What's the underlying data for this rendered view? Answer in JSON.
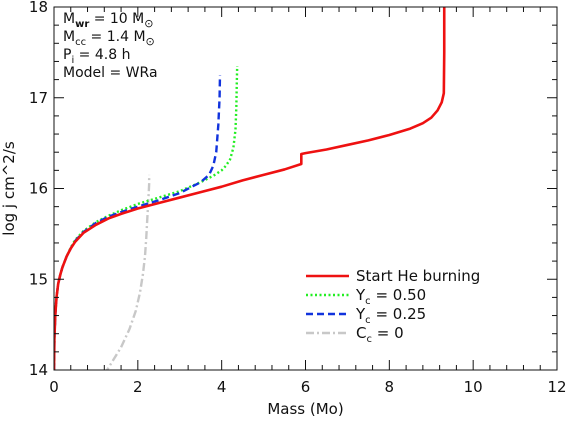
{
  "chart_data": {
    "type": "line",
    "xlabel": "Mass (Mo)",
    "ylabel": "log j cm^2/s",
    "xlim": [
      0,
      12
    ],
    "ylim": [
      14,
      18
    ],
    "x_ticks": [
      "0",
      "2",
      "4",
      "6",
      "8",
      "10",
      "12"
    ],
    "y_ticks": [
      "14",
      "15",
      "16",
      "17",
      "18"
    ],
    "grid": false,
    "legend_position": "bottom-right",
    "annotations": [
      {
        "base": "M",
        "sub": "wr",
        "rest": " = 10 M",
        "symbol": "⊙"
      },
      {
        "base": "M",
        "sub": "cc",
        "rest": " = 1.4 M",
        "symbol": "⊙"
      },
      {
        "base": "P",
        "sub": "i",
        "rest": " = 4.8 h",
        "symbol": ""
      },
      {
        "base": "Model",
        "sub": "",
        "rest": "   = WRa",
        "symbol": ""
      }
    ],
    "series": [
      {
        "name": "Start He burning",
        "legend": {
          "base": "Start He burning",
          "sub": "",
          "rest": ""
        },
        "color": "#ee1111",
        "style": "solid",
        "x": [
          0.0,
          0.01,
          0.03,
          0.06,
          0.1,
          0.15,
          0.2,
          0.3,
          0.4,
          0.5,
          0.7,
          1.0,
          1.3,
          1.6,
          2.0,
          2.5,
          3.0,
          3.5,
          4.0,
          4.5,
          5.0,
          5.5,
          5.9,
          5.9,
          6.0,
          6.5,
          7.0,
          7.5,
          8.0,
          8.5,
          8.8,
          9.0,
          9.15,
          9.25,
          9.3,
          9.31,
          9.31
        ],
        "y": [
          14.0,
          14.35,
          14.6,
          14.8,
          14.95,
          15.05,
          15.13,
          15.25,
          15.34,
          15.41,
          15.51,
          15.6,
          15.67,
          15.72,
          15.78,
          15.84,
          15.9,
          15.96,
          16.02,
          16.09,
          16.15,
          16.21,
          16.27,
          16.38,
          16.39,
          16.43,
          16.48,
          16.53,
          16.59,
          16.66,
          16.72,
          16.78,
          16.86,
          16.95,
          17.05,
          17.5,
          18.0
        ]
      },
      {
        "name": "Yc = 0.50",
        "legend": {
          "base": "Y",
          "sub": "c",
          "rest": " = 0.50"
        },
        "color": "#22ee22",
        "style": "dotted",
        "x": [
          0.0,
          0.01,
          0.03,
          0.06,
          0.1,
          0.15,
          0.2,
          0.3,
          0.4,
          0.5,
          0.7,
          1.0,
          1.3,
          1.6,
          2.0,
          2.5,
          3.0,
          3.5,
          3.8,
          4.0,
          4.1,
          4.2,
          4.28,
          4.33,
          4.35,
          4.36,
          4.37
        ],
        "y": [
          14.0,
          14.35,
          14.6,
          14.8,
          14.95,
          15.05,
          15.13,
          15.25,
          15.35,
          15.43,
          15.53,
          15.63,
          15.7,
          15.76,
          15.83,
          15.9,
          15.97,
          16.07,
          16.14,
          16.2,
          16.25,
          16.32,
          16.45,
          16.65,
          16.9,
          17.15,
          17.35
        ]
      },
      {
        "name": "Yc = 0.25",
        "legend": {
          "base": "Y",
          "sub": "c",
          "rest": " = 0.25"
        },
        "color": "#1133dd",
        "style": "dashed",
        "x": [
          0.0,
          0.01,
          0.03,
          0.06,
          0.1,
          0.15,
          0.2,
          0.3,
          0.4,
          0.5,
          0.7,
          1.0,
          1.3,
          1.6,
          2.0,
          2.5,
          3.0,
          3.5,
          3.7,
          3.8,
          3.87,
          3.92,
          3.95,
          3.96
        ],
        "y": [
          14.0,
          14.35,
          14.6,
          14.8,
          14.95,
          15.05,
          15.13,
          15.25,
          15.34,
          15.42,
          15.52,
          15.62,
          15.69,
          15.74,
          15.8,
          15.87,
          15.95,
          16.07,
          16.15,
          16.25,
          16.4,
          16.7,
          17.0,
          17.25
        ]
      },
      {
        "name": "Cc = 0",
        "legend": {
          "base": "C",
          "sub": "c",
          "rest": " = 0"
        },
        "color": "#c8c8c8",
        "style": "dashdot",
        "x": [
          1.2,
          1.4,
          1.6,
          1.8,
          1.95,
          2.05,
          2.12,
          2.17,
          2.2,
          2.22,
          2.24,
          2.25,
          2.26,
          2.27,
          2.27
        ],
        "y": [
          13.95,
          14.1,
          14.25,
          14.45,
          14.65,
          14.85,
          15.05,
          15.25,
          15.45,
          15.62,
          15.78,
          15.88,
          15.95,
          16.05,
          16.15
        ]
      }
    ]
  }
}
